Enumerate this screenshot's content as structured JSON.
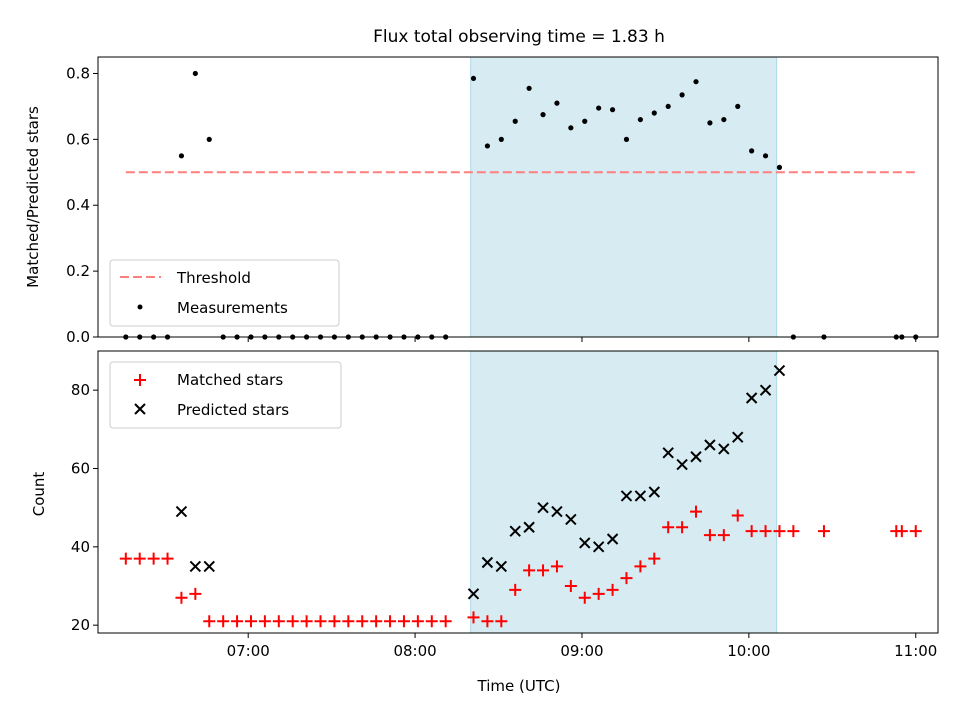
{
  "title": "Flux total observing time = 1.83 h",
  "colors": {
    "threshold": "#ff7f7f",
    "measurements": "#000000",
    "matched": "#ff0000",
    "predicted": "#000000",
    "observing_span": "#add8e6"
  },
  "chart_data": [
    {
      "type": "scatter",
      "ylabel": "Matched/Predicted stars",
      "ylim": [
        0,
        0.85
      ],
      "yticks": [
        0.0,
        0.2,
        0.4,
        0.6,
        0.8
      ],
      "ytick_labels": [
        "0.0",
        "0.2",
        "0.4",
        "0.6",
        "0.8"
      ],
      "xlim": [
        "06:06",
        "11:08"
      ],
      "highlight_span": [
        "08:20",
        "10:10"
      ],
      "legend_position": "lower-left",
      "legend": [
        "Threshold",
        "Measurements"
      ],
      "threshold": {
        "name": "Threshold",
        "value": 0.5,
        "x_range": [
          "06:16",
          "11:00"
        ]
      },
      "series": [
        {
          "name": "Measurements",
          "x": [
            "06:16",
            "06:21",
            "06:26",
            "06:31",
            "06:36",
            "06:41",
            "06:46",
            "06:51",
            "06:56",
            "07:01",
            "07:06",
            "07:11",
            "07:16",
            "07:21",
            "07:26",
            "07:31",
            "07:36",
            "07:41",
            "07:46",
            "07:51",
            "07:56",
            "08:01",
            "08:06",
            "08:11",
            "08:21",
            "08:26",
            "08:31",
            "08:36",
            "08:41",
            "08:46",
            "08:51",
            "08:56",
            "09:01",
            "09:06",
            "09:11",
            "09:16",
            "09:21",
            "09:26",
            "09:31",
            "09:36",
            "09:41",
            "09:46",
            "09:51",
            "09:56",
            "10:01",
            "10:06",
            "10:11",
            "10:16",
            "10:27",
            "10:53",
            "10:55",
            "11:00"
          ],
          "y": [
            0,
            0,
            0,
            0,
            0.55,
            0.8,
            0.6,
            0,
            0,
            0,
            0,
            0,
            0,
            0,
            0,
            0,
            0,
            0,
            0,
            0,
            0,
            0,
            0,
            0,
            0.785,
            0.58,
            0.6,
            0.655,
            0.755,
            0.675,
            0.71,
            0.635,
            0.655,
            0.695,
            0.69,
            0.6,
            0.66,
            0.68,
            0.7,
            0.735,
            0.775,
            0.65,
            0.66,
            0.7,
            0.565,
            0.55,
            0.515,
            0,
            0,
            0,
            0,
            0
          ]
        }
      ]
    },
    {
      "type": "scatter",
      "ylabel": "Count",
      "xlabel": "Time (UTC)",
      "ylim": [
        18,
        90
      ],
      "yticks": [
        20,
        40,
        60,
        80
      ],
      "ytick_labels": [
        "20",
        "40",
        "60",
        "80"
      ],
      "xlim": [
        "06:06",
        "11:08"
      ],
      "xticks": [
        "07:00",
        "08:00",
        "09:00",
        "10:00",
        "11:00"
      ],
      "xtick_labels": [
        "07:00",
        "08:00",
        "09:00",
        "10:00",
        "11:00"
      ],
      "highlight_span": [
        "08:20",
        "10:10"
      ],
      "legend_position": "upper-left",
      "legend": [
        "Matched stars",
        "Predicted stars"
      ],
      "series": [
        {
          "name": "Matched stars",
          "marker": "+",
          "x": [
            "06:16",
            "06:21",
            "06:26",
            "06:31",
            "06:36",
            "06:41",
            "06:46",
            "06:51",
            "06:56",
            "07:01",
            "07:06",
            "07:11",
            "07:16",
            "07:21",
            "07:26",
            "07:31",
            "07:36",
            "07:41",
            "07:46",
            "07:51",
            "07:56",
            "08:01",
            "08:06",
            "08:11",
            "08:21",
            "08:26",
            "08:31",
            "08:36",
            "08:41",
            "08:46",
            "08:51",
            "08:56",
            "09:01",
            "09:06",
            "09:11",
            "09:16",
            "09:21",
            "09:26",
            "09:31",
            "09:36",
            "09:41",
            "09:46",
            "09:51",
            "09:56",
            "10:01",
            "10:06",
            "10:11",
            "10:16",
            "10:27",
            "10:53",
            "10:55",
            "11:00"
          ],
          "y": [
            37,
            37,
            37,
            37,
            27,
            28,
            21,
            21,
            21,
            21,
            21,
            21,
            21,
            21,
            21,
            21,
            21,
            21,
            21,
            21,
            21,
            21,
            21,
            21,
            22,
            21,
            21,
            29,
            34,
            34,
            35,
            30,
            27,
            28,
            29,
            32,
            35,
            37,
            45,
            45,
            49,
            43,
            43,
            48,
            44,
            44,
            44,
            44,
            44,
            44,
            44,
            44
          ]
        },
        {
          "name": "Predicted stars",
          "marker": "x",
          "x": [
            "06:36",
            "06:41",
            "06:46",
            "08:21",
            "08:26",
            "08:31",
            "08:36",
            "08:41",
            "08:46",
            "08:51",
            "08:56",
            "09:01",
            "09:06",
            "09:11",
            "09:16",
            "09:21",
            "09:26",
            "09:31",
            "09:36",
            "09:41",
            "09:46",
            "09:51",
            "09:56",
            "10:01",
            "10:06",
            "10:11"
          ],
          "y": [
            49,
            35,
            35,
            28,
            36,
            35,
            44,
            45,
            50,
            49,
            47,
            41,
            40,
            42,
            53,
            53,
            54,
            64,
            61,
            63,
            66,
            65,
            68,
            78,
            80,
            85
          ]
        }
      ]
    }
  ]
}
